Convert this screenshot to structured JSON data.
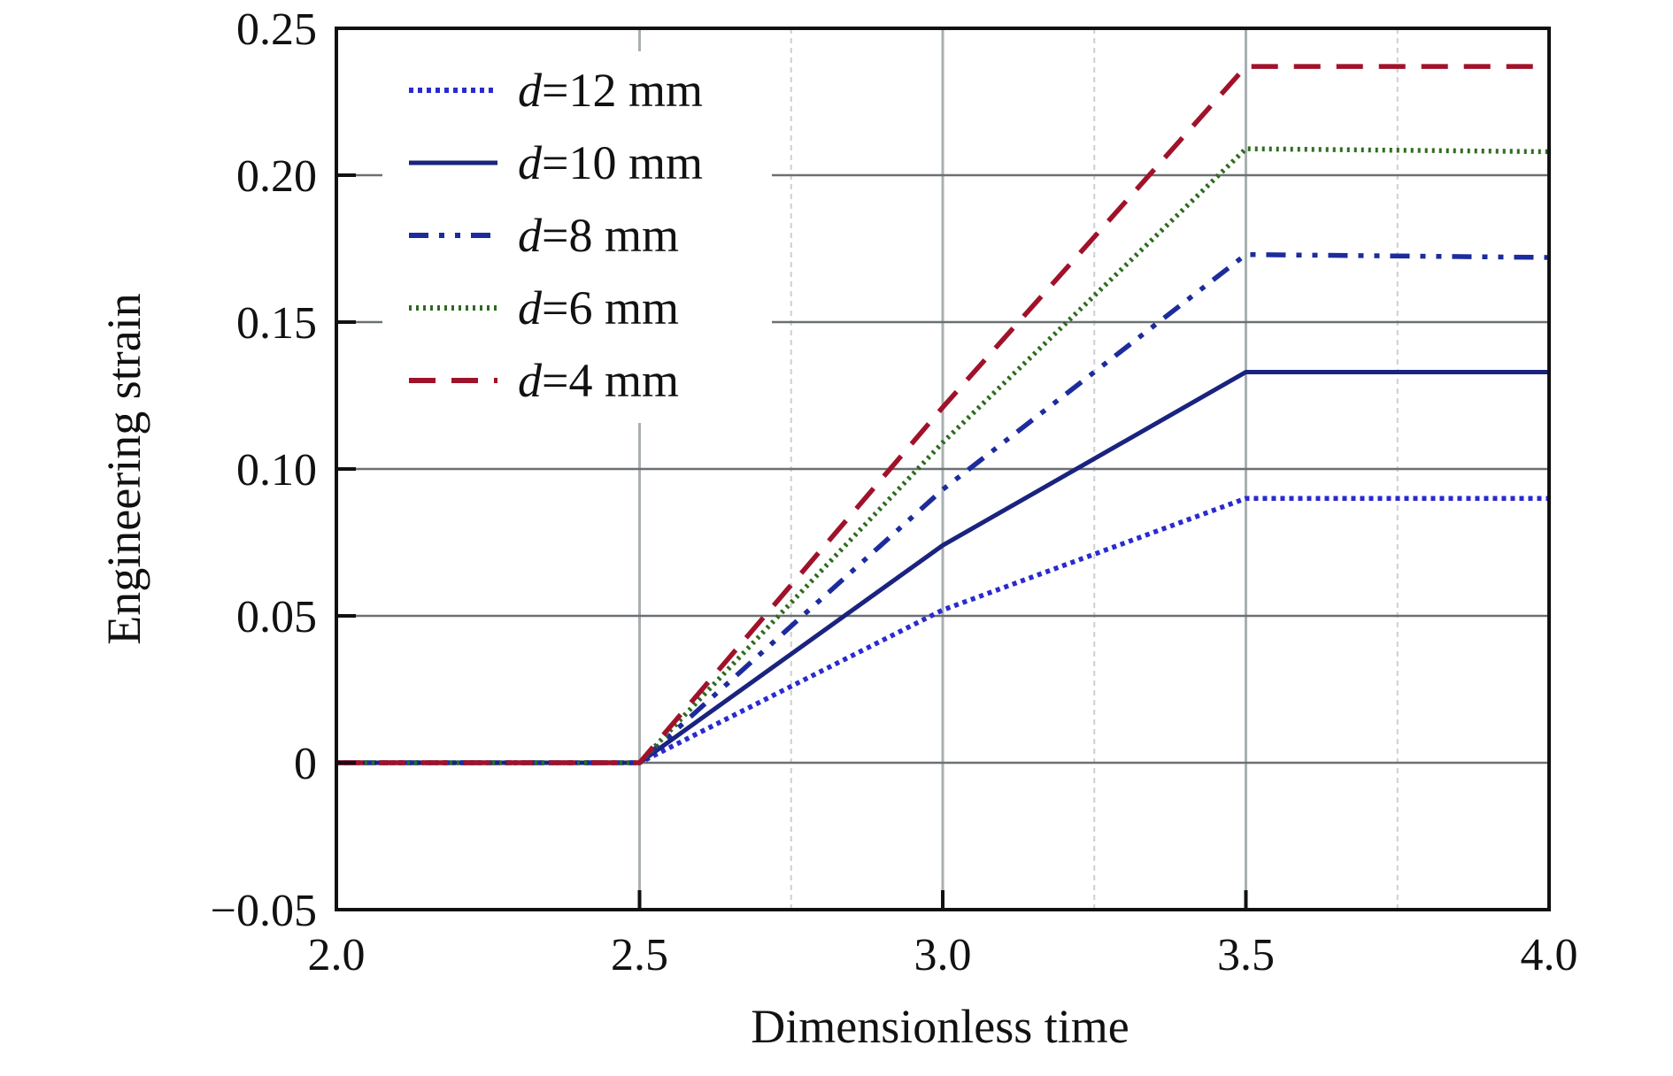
{
  "chart_data": {
    "type": "line",
    "title": "",
    "xlabel": "Dimensionless time",
    "ylabel": "Engineering strain",
    "xlim": [
      2.0,
      4.0
    ],
    "ylim": [
      -0.05,
      0.25
    ],
    "xticks": [
      2.0,
      2.5,
      3.0,
      3.5,
      4.0
    ],
    "xtick_labels": [
      "2.0",
      "2.5",
      "3.0",
      "3.5",
      "4.0"
    ],
    "x_minor_grid": [
      2.75,
      3.25,
      3.75
    ],
    "yticks": [
      -0.05,
      0,
      0.05,
      0.1,
      0.15,
      0.2,
      0.25
    ],
    "ytick_labels": [
      "−0.05",
      "0",
      "0.05",
      "0.10",
      "0.15",
      "0.20",
      "0.25"
    ],
    "grid": true,
    "legend_position": "top-left",
    "series": [
      {
        "name": "d=12 mm",
        "var": "d",
        "rest": "=12 mm",
        "color": "#2a2ad0",
        "style": "dotted",
        "x": [
          2.0,
          2.5,
          3.0,
          3.5,
          4.0
        ],
        "y": [
          0,
          0,
          0.052,
          0.09,
          0.09
        ]
      },
      {
        "name": "d=10 mm",
        "var": "d",
        "rest": "=10 mm",
        "color": "#1a237e",
        "style": "solid",
        "x": [
          2.0,
          2.5,
          3.0,
          3.5,
          4.0
        ],
        "y": [
          0,
          0,
          0.074,
          0.133,
          0.133
        ]
      },
      {
        "name": "d=8 mm",
        "var": "d",
        "rest": "=8 mm",
        "color": "#1c2c9c",
        "style": "dashdot",
        "x": [
          2.0,
          2.5,
          3.0,
          3.5,
          4.0
        ],
        "y": [
          0,
          0,
          0.093,
          0.173,
          0.172
        ]
      },
      {
        "name": "d=6 mm",
        "var": "d",
        "rest": "=6 mm",
        "color": "#2e6b1f",
        "style": "dotted-fine",
        "x": [
          2.0,
          2.5,
          3.0,
          3.5,
          4.0
        ],
        "y": [
          0,
          0,
          0.109,
          0.209,
          0.208
        ]
      },
      {
        "name": "d=4 mm",
        "var": "d",
        "rest": "=4 mm",
        "color": "#a0122a",
        "style": "dashed",
        "x": [
          2.0,
          2.5,
          3.0,
          3.5,
          4.0
        ],
        "y": [
          0,
          0,
          0.121,
          0.237,
          0.237
        ]
      }
    ]
  }
}
